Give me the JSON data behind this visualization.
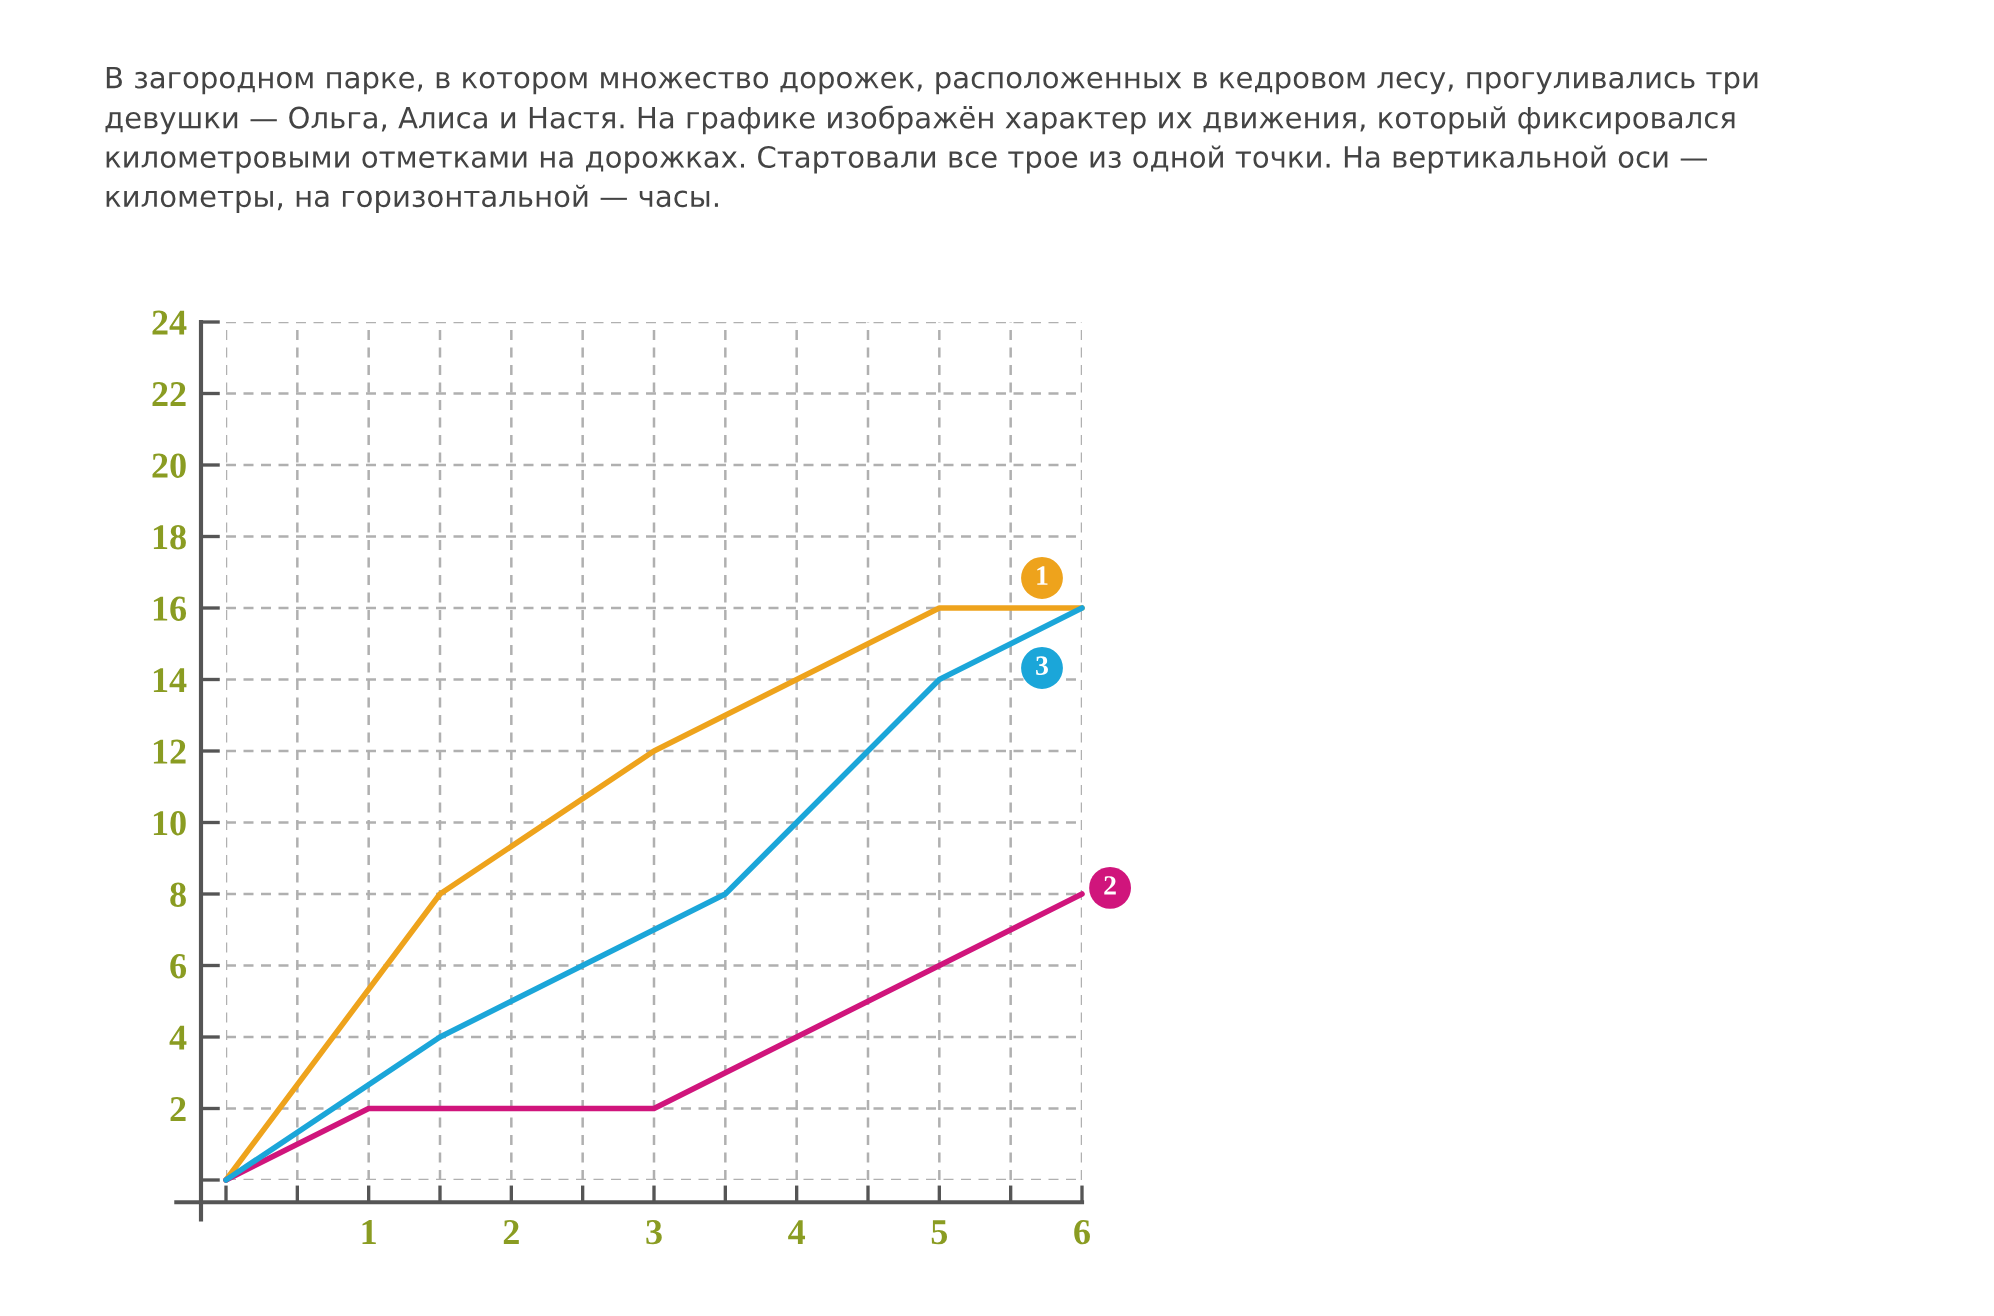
{
  "chart_data": {
    "type": "line",
    "title": "В загородном парке, в котором множество дорожек, расположенных в кедровом лесу, прогуливались три\nдевушки — Ольга, Алиса и Настя. На графике изображён характер их движения, который фиксировался\nкилометровыми отметками на дорожках. Стартовали все трое из одной точки. На вертикальной оси —\nкилометры, на горизонтальной — часы.",
    "xlim": [
      0,
      6
    ],
    "ylim": [
      0,
      24
    ],
    "xticks": [
      {
        "value": 0,
        "label": null
      },
      {
        "value": 0.5,
        "label": null
      },
      1,
      {
        "value": 1.5,
        "label": null
      },
      2,
      {
        "value": 2.5,
        "label": null
      },
      3,
      {
        "value": 3.5,
        "label": null
      },
      4,
      {
        "value": 4.5,
        "label": null
      },
      5,
      {
        "value": 5.5,
        "label": null
      },
      6
    ],
    "yticks": [
      {
        "value": 0,
        "label": null
      },
      2,
      4,
      6,
      8,
      10,
      12,
      14,
      16,
      18,
      20,
      22,
      24
    ],
    "grid": true,
    "legend": false,
    "marker": "none",
    "line_style": "solid",
    "series": [
      {
        "name": "1",
        "color": "#eea31c",
        "x": [
          0,
          1.5,
          3,
          5,
          6
        ],
        "values": [
          0,
          8,
          12,
          16,
          16
        ]
      },
      {
        "name": "2",
        "color": "#d0157c",
        "x": [
          0,
          1,
          3,
          6
        ],
        "values": [
          0,
          2,
          2,
          8
        ]
      },
      {
        "name": "3",
        "color": "#1ba6d9",
        "x": [
          0,
          1.5,
          3.5,
          5,
          6
        ],
        "values": [
          0,
          4,
          8,
          14,
          16
        ]
      }
    ]
  }
}
